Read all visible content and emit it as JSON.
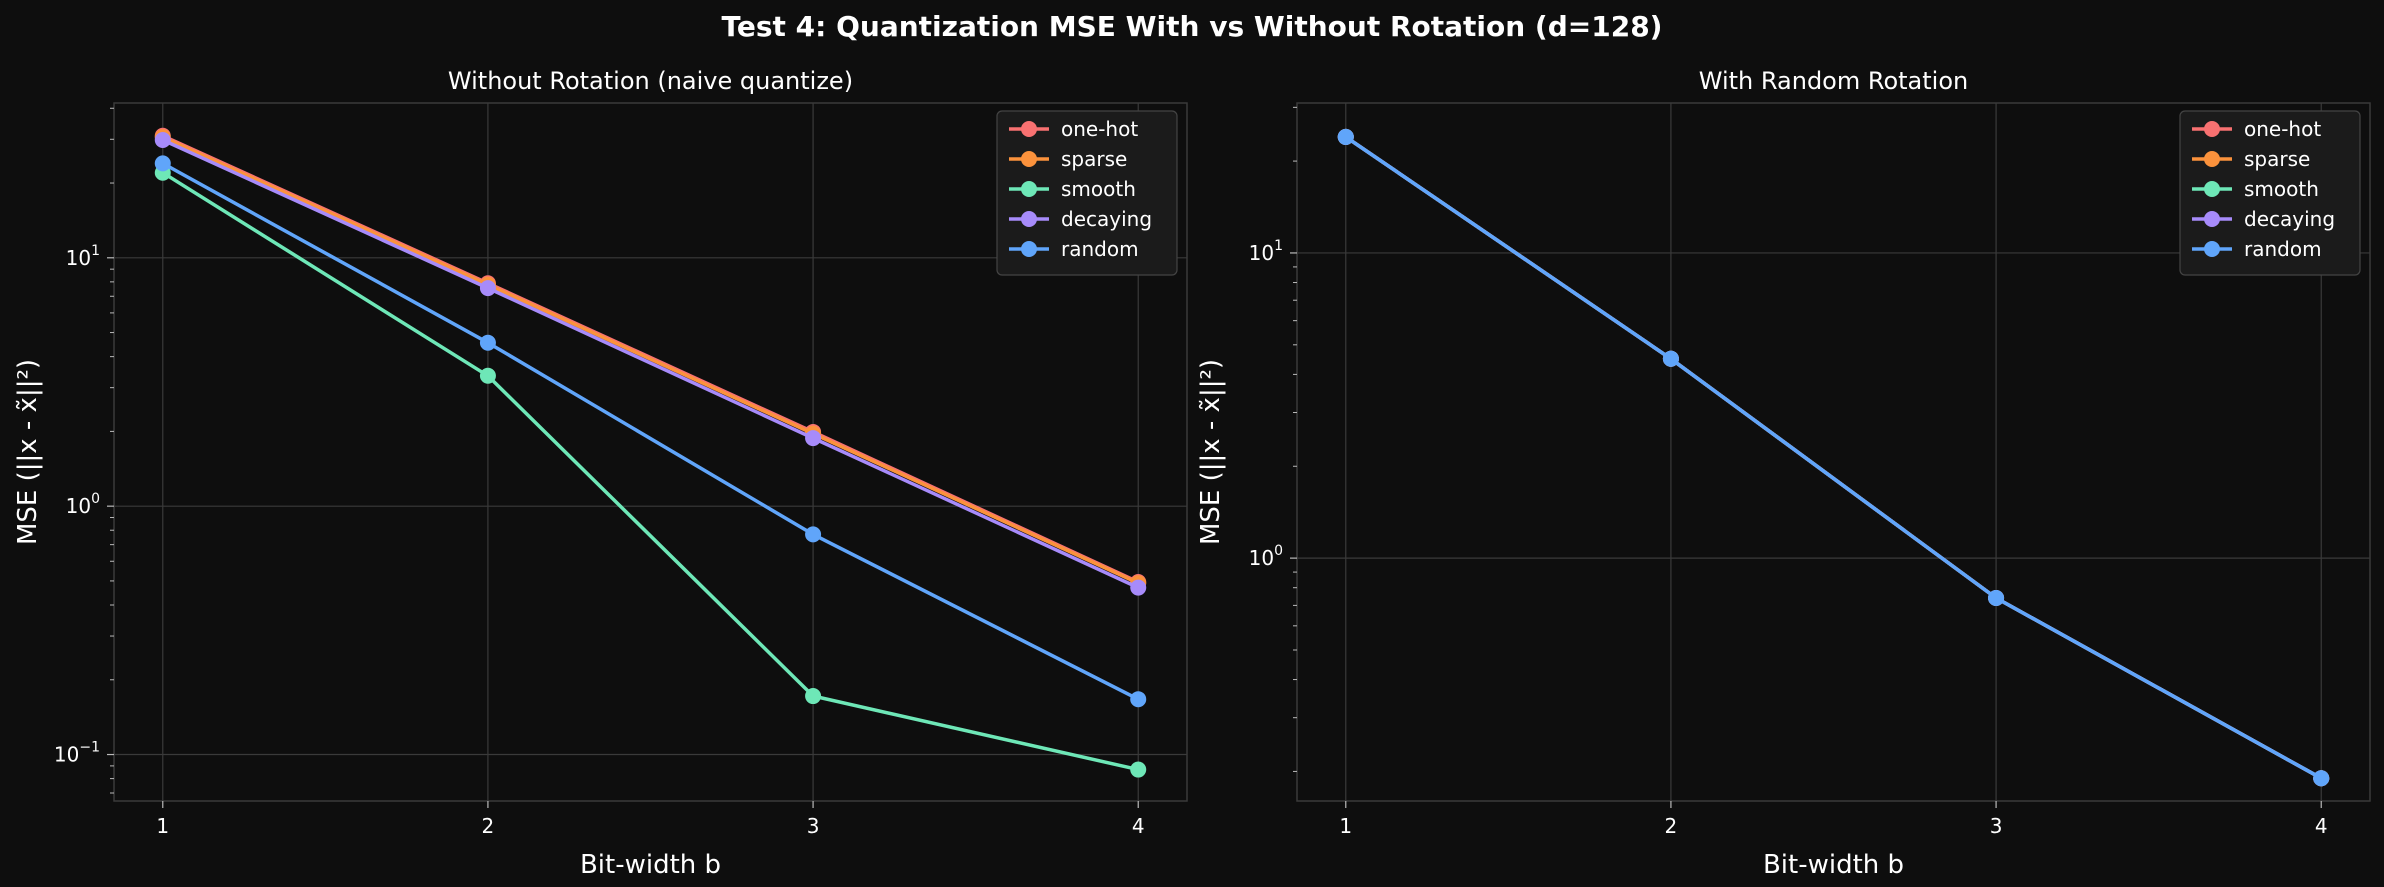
{
  "figure": {
    "title": "Test 4: Quantization MSE With vs Without Rotation (d=128)",
    "background": "#0e0e0e",
    "axes_background": "#0e0e0e",
    "grid_color": "#3a3a3a",
    "spine_color": "#3a3a3a"
  },
  "chart_data": [
    {
      "type": "line",
      "title": "Without Rotation (naive quantize)",
      "xlabel": "Bit-width b",
      "ylabel": "MSE (||x - x̃||²)",
      "yscale": "log",
      "x": [
        1,
        2,
        3,
        4
      ],
      "xlim": [
        0.85,
        4.15
      ],
      "ylim": [
        0.065,
        42
      ],
      "xticks": [
        "1",
        "2",
        "3",
        "4"
      ],
      "yticks": [
        {
          "value": 10,
          "base": "10",
          "exp": "1"
        },
        {
          "value": 1,
          "base": "10",
          "exp": "0"
        },
        {
          "value": 0.1,
          "base": "10",
          "exp": "−1"
        }
      ],
      "grid": true,
      "legend_position": "top-right",
      "series": [
        {
          "name": "one-hot",
          "color": "#f87171",
          "values": [
            31.0,
            7.9,
            1.99,
            0.495
          ]
        },
        {
          "name": "sparse",
          "color": "#fb923c",
          "values": [
            30.6,
            7.8,
            1.96,
            0.49
          ]
        },
        {
          "name": "smooth",
          "color": "#6ee7b7",
          "values": [
            22.0,
            3.35,
            0.172,
            0.087
          ]
        },
        {
          "name": "decaying",
          "color": "#a78bfa",
          "values": [
            29.8,
            7.55,
            1.88,
            0.47
          ]
        },
        {
          "name": "random",
          "color": "#60a5fa",
          "values": [
            24.0,
            4.55,
            0.77,
            0.167
          ]
        }
      ]
    },
    {
      "type": "line",
      "title": "With Random Rotation",
      "xlabel": "Bit-width b",
      "ylabel": "MSE (||x - x̃||²)",
      "yscale": "log",
      "x": [
        1,
        2,
        3,
        4
      ],
      "xlim": [
        0.85,
        4.15
      ],
      "ylim": [
        0.16,
        31
      ],
      "xticks": [
        "1",
        "2",
        "3",
        "4"
      ],
      "yticks": [
        {
          "value": 10,
          "base": "10",
          "exp": "1"
        },
        {
          "value": 1,
          "base": "10",
          "exp": "0"
        }
      ],
      "grid": true,
      "legend_position": "top-right",
      "series": [
        {
          "name": "one-hot",
          "color": "#f87171",
          "values": [
            24.0,
            4.5,
            0.74,
            0.19
          ]
        },
        {
          "name": "sparse",
          "color": "#fb923c",
          "values": [
            24.0,
            4.5,
            0.74,
            0.19
          ]
        },
        {
          "name": "smooth",
          "color": "#6ee7b7",
          "values": [
            24.0,
            4.5,
            0.74,
            0.19
          ]
        },
        {
          "name": "decaying",
          "color": "#a78bfa",
          "values": [
            24.0,
            4.5,
            0.74,
            0.19
          ]
        },
        {
          "name": "random",
          "color": "#60a5fa",
          "values": [
            24.0,
            4.5,
            0.74,
            0.19
          ]
        }
      ]
    }
  ]
}
